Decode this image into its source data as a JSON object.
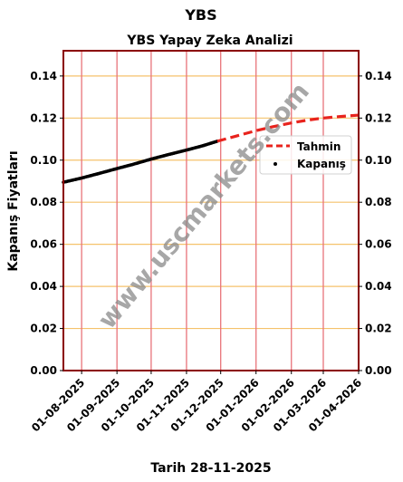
{
  "chart_data": {
    "type": "line",
    "title": "YBS",
    "subtitle": "YBS Yapay Zeka Analizi",
    "xlabel": "Tarih 28-11-2025",
    "ylabel": "Kapanış Fiyatları",
    "watermark": "www.uscmarkets.com",
    "x_ticks": [
      "01-08-2025",
      "01-09-2025",
      "01-10-2025",
      "01-11-2025",
      "01-12-2025",
      "01-01-2026",
      "01-02-2026",
      "01-03-2026",
      "01-04-2026"
    ],
    "y_ticks": [
      "0.00",
      "0.02",
      "0.04",
      "0.06",
      "0.08",
      "0.10",
      "0.12",
      "0.14"
    ],
    "ylim": [
      0,
      0.152
    ],
    "xlim": [
      "2025-07-16",
      "2026-04-01"
    ],
    "grid": true,
    "legend_position": "right",
    "series": [
      {
        "name": "Kapanış",
        "style": "scatter",
        "color": "#000000",
        "x": [
          "2025-07-16",
          "2025-08-01",
          "2025-08-15",
          "2025-09-01",
          "2025-09-15",
          "2025-10-01",
          "2025-10-15",
          "2025-11-01",
          "2025-11-15",
          "2025-11-28"
        ],
        "values": [
          0.0895,
          0.0915,
          0.0935,
          0.096,
          0.098,
          0.1005,
          0.1025,
          0.1048,
          0.1068,
          0.109
        ]
      },
      {
        "name": "Tahmin",
        "style": "dashed-line",
        "color": "#e8231d",
        "x": [
          "2025-11-28",
          "2025-12-15",
          "2026-01-01",
          "2026-01-15",
          "2026-02-01",
          "2026-02-15",
          "2026-03-01",
          "2026-03-15",
          "2026-04-01"
        ],
        "values": [
          0.109,
          0.1115,
          0.114,
          0.1158,
          0.1177,
          0.119,
          0.12,
          0.1207,
          0.1214
        ]
      }
    ]
  }
}
